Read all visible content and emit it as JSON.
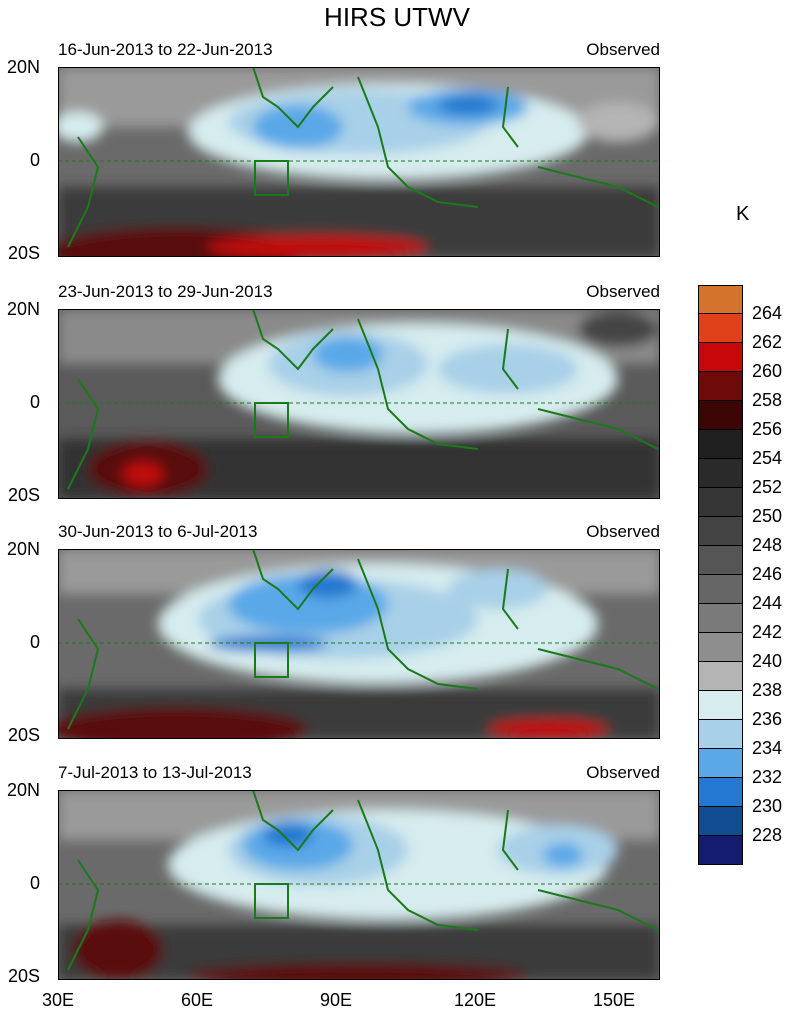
{
  "title": "HIRS UTWV",
  "unit_label": "K",
  "panels": [
    {
      "period": "16-Jun-2013 to 22-Jun-2013",
      "tag": "Observed"
    },
    {
      "period": "23-Jun-2013 to 29-Jun-2013",
      "tag": "Observed"
    },
    {
      "period": "30-Jun-2013 to 6-Jul-2013",
      "tag": "Observed"
    },
    {
      "period": "7-Jul-2013 to 13-Jul-2013",
      "tag": "Observed"
    }
  ],
  "y_ticks": [
    "20N",
    "0",
    "20S"
  ],
  "x_ticks": [
    "30E",
    "60E",
    "90E",
    "120E",
    "150E"
  ],
  "colorbar": {
    "labels": [
      "264",
      "262",
      "260",
      "258",
      "256",
      "254",
      "252",
      "250",
      "248",
      "246",
      "244",
      "242",
      "240",
      "238",
      "236",
      "234",
      "232",
      "230",
      "228"
    ],
    "colors": [
      "#d4742c",
      "#e0401a",
      "#c80808",
      "#6e0a0a",
      "#3c0606",
      "#202020",
      "#2a2a2a",
      "#363636",
      "#444444",
      "#555555",
      "#666666",
      "#7a7a7a",
      "#8e8e8e",
      "#b4b4b4",
      "#d6ecee",
      "#a8d0e8",
      "#5aa8e8",
      "#2478d0",
      "#124c92",
      "#141c72"
    ]
  },
  "map_extent": {
    "lon_range": [
      30,
      160
    ],
    "lat_range": [
      -20,
      20
    ]
  }
}
